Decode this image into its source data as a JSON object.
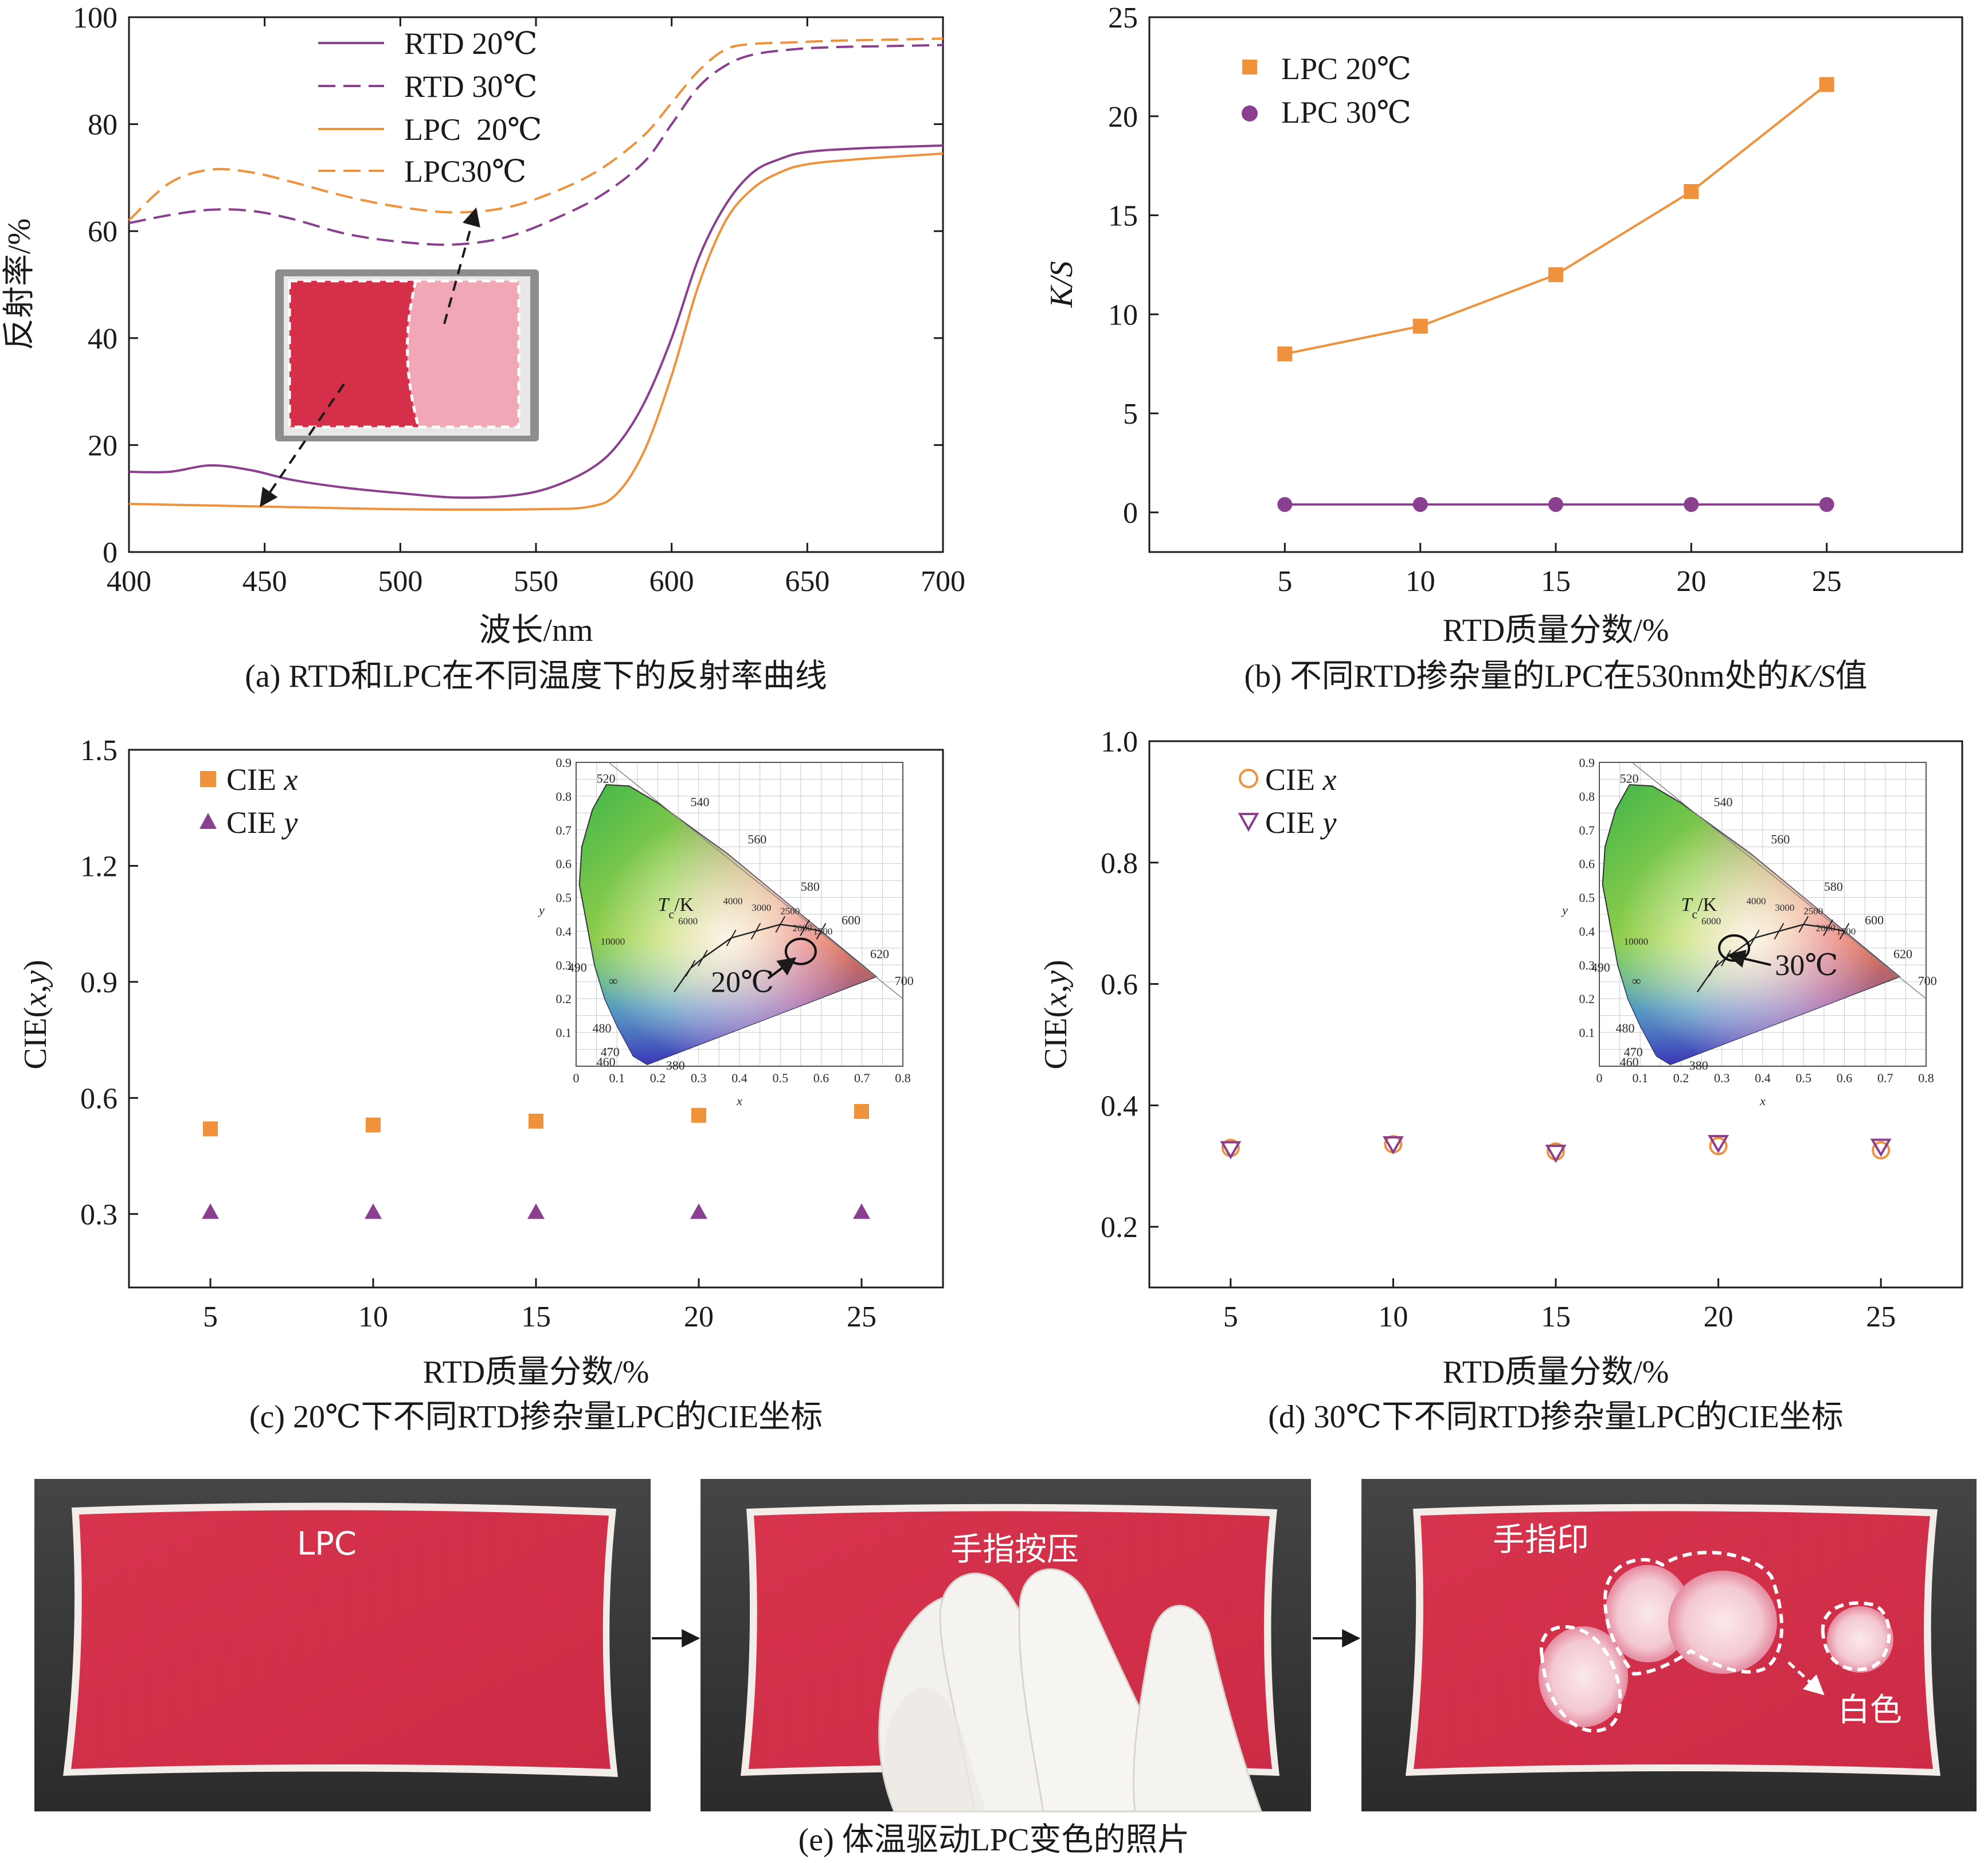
{
  "colors": {
    "rtd": "#8a3f8f",
    "lpc": "#f0913c",
    "fabric": "#d8324d",
    "white_spot": "#f6dde2",
    "glove": "#f3f1ee",
    "backdrop": "#3a3a3a"
  },
  "panel_a": {
    "caption": "(a) RTD和LPC在不同温度下的反射率曲线",
    "xlabel": "波长/nm",
    "ylabel": "反射率/%",
    "legend": [
      "RTD 20℃",
      "RTD 30℃",
      "LPC  20℃",
      "LPC30℃"
    ],
    "chart_data": {
      "type": "line",
      "xlim": [
        400,
        700
      ],
      "ylim": [
        0,
        100
      ],
      "xticks": [
        400,
        450,
        500,
        550,
        600,
        650,
        700
      ],
      "yticks": [
        0,
        20,
        40,
        60,
        80,
        100
      ],
      "series": [
        {
          "name": "RTD 20℃",
          "color": "#8a3f8f",
          "dash": false,
          "x": [
            400,
            415,
            430,
            445,
            460,
            480,
            500,
            520,
            540,
            555,
            570,
            580,
            590,
            600,
            610,
            620,
            630,
            640,
            650,
            670,
            700
          ],
          "y": [
            15,
            15,
            16.2,
            15.3,
            13.5,
            12,
            11,
            10.2,
            10.5,
            12,
            15.5,
            20,
            28,
            40,
            55,
            65,
            71,
            73.5,
            74.8,
            75.5,
            76
          ]
        },
        {
          "name": "RTD 30℃",
          "color": "#8a3f8f",
          "dash": true,
          "x": [
            400,
            415,
            430,
            445,
            460,
            480,
            500,
            520,
            540,
            560,
            575,
            590,
            600,
            610,
            620,
            630,
            645,
            660,
            680,
            700
          ],
          "y": [
            61.5,
            63,
            64,
            63.8,
            62.3,
            59.5,
            58,
            57.5,
            59,
            63,
            67,
            73,
            80,
            87,
            91,
            93,
            94,
            94.4,
            94.6,
            94.8
          ]
        },
        {
          "name": "LPC  20℃",
          "color": "#f0913c",
          "dash": false,
          "x": [
            400,
            450,
            500,
            550,
            570,
            580,
            590,
            600,
            610,
            620,
            630,
            640,
            650,
            670,
            700
          ],
          "y": [
            9,
            8.5,
            8,
            8,
            8.5,
            11,
            19,
            33,
            50,
            62,
            68,
            71,
            72.5,
            73.5,
            74.5
          ]
        },
        {
          "name": "LPC30℃",
          "color": "#f0913c",
          "dash": true,
          "x": [
            400,
            415,
            430,
            445,
            460,
            480,
            500,
            520,
            540,
            560,
            575,
            590,
            600,
            610,
            620,
            630,
            645,
            660,
            680,
            700
          ],
          "y": [
            62,
            69,
            71.5,
            71,
            69.2,
            66.5,
            64.5,
            63.5,
            64.5,
            68,
            72,
            78,
            84,
            90,
            94,
            95,
            95.3,
            95.6,
            95.8,
            96
          ]
        }
      ]
    }
  },
  "panel_b": {
    "caption_prefix": "(b) 不同RTD掺杂量的LPC在530nm处的",
    "caption_ks": "K/S",
    "caption_suffix": "值",
    "xlabel": "RTD质量分数/%",
    "ylabel": "K/S",
    "chart_data": {
      "type": "line",
      "xlim": [
        0,
        30
      ],
      "ylim": [
        -2,
        25
      ],
      "xticks": [
        5,
        10,
        15,
        20,
        25
      ],
      "yticks": [
        0,
        5,
        10,
        15,
        20,
        25
      ],
      "series": [
        {
          "name": "LPC 20℃",
          "color": "#f0913c",
          "marker": "square",
          "x": [
            5,
            10,
            15,
            20,
            25
          ],
          "y": [
            8.0,
            9.4,
            12.0,
            16.2,
            21.6
          ]
        },
        {
          "name": "LPC 30℃",
          "color": "#8a3f8f",
          "marker": "circle",
          "x": [
            5,
            10,
            15,
            20,
            25
          ],
          "y": [
            0.4,
            0.4,
            0.4,
            0.4,
            0.4
          ]
        }
      ]
    }
  },
  "panel_c": {
    "caption": "(c) 20℃下不同RTD掺杂量LPC的CIE坐标",
    "xlabel": "RTD质量分数/%",
    "ylabel_prefix": "CIE(",
    "ylabel_x": "x",
    "ylabel_comma": ",",
    "ylabel_y": "y",
    "ylabel_suffix": ")",
    "legend_prefix": "CIE ",
    "legend_vars": [
      "x",
      "y"
    ],
    "inset_temp": "20℃",
    "chart_data": {
      "type": "scatter",
      "xlim": [
        2.5,
        27.5
      ],
      "ylim": [
        0.11,
        1.5
      ],
      "xticks": [
        5,
        10,
        15,
        20,
        25
      ],
      "yticks": [
        0.3,
        0.6,
        0.9,
        1.2,
        1.5
      ],
      "series": [
        {
          "name": "CIE x",
          "color": "#f0913c",
          "marker": "square",
          "x": [
            5,
            10,
            15,
            20,
            25
          ],
          "y": [
            0.52,
            0.53,
            0.54,
            0.555,
            0.565
          ]
        },
        {
          "name": "CIE y",
          "color": "#8a3f8f",
          "marker": "triangle",
          "x": [
            5,
            10,
            15,
            20,
            25
          ],
          "y": [
            0.305,
            0.305,
            0.305,
            0.305,
            0.305
          ]
        }
      ]
    }
  },
  "panel_d": {
    "caption": "(d) 30℃下不同RTD掺杂量LPC的CIE坐标",
    "xlabel": "RTD质量分数/%",
    "ylabel_prefix": "CIE(",
    "ylabel_x": "x",
    "ylabel_comma": ",",
    "ylabel_y": "y",
    "ylabel_suffix": ")",
    "legend_prefix": "CIE ",
    "legend_vars": [
      "x",
      "y"
    ],
    "inset_temp": "30℃",
    "chart_data": {
      "type": "scatter",
      "xlim": [
        2.5,
        27.5
      ],
      "ylim": [
        0.1,
        1.0
      ],
      "xticks": [
        5,
        10,
        15,
        20,
        25
      ],
      "yticks": [
        0.2,
        0.4,
        0.6,
        0.8,
        1.0
      ],
      "series": [
        {
          "name": "CIE x",
          "color": "#f0913c",
          "marker": "circle-open",
          "x": [
            5,
            10,
            15,
            20,
            25
          ],
          "y": [
            0.33,
            0.336,
            0.324,
            0.333,
            0.326
          ]
        },
        {
          "name": "CIE y",
          "color": "#8a3f8f",
          "marker": "triangle-down-open",
          "x": [
            5,
            10,
            15,
            20,
            25
          ],
          "y": [
            0.328,
            0.336,
            0.322,
            0.338,
            0.332
          ]
        }
      ]
    }
  },
  "inset_cie": {
    "axis_x": "x",
    "axis_y": "y",
    "ticks_x": [
      "0",
      "0.1",
      "0.2",
      "0.3",
      "0.4",
      "0.5",
      "0.6",
      "0.7",
      "0.8"
    ],
    "ticks_y": [
      "0.1",
      "0.2",
      "0.3",
      "0.4",
      "0.5",
      "0.6",
      "0.7",
      "0.8",
      "0.9"
    ],
    "wavelengths": [
      "520",
      "540",
      "560",
      "580",
      "600",
      "620",
      "700",
      "490",
      "480",
      "470",
      "460",
      "380"
    ],
    "cct_label_t": "T",
    "cct_label_sub": "c",
    "cct_label_k": "/K",
    "cct_values": [
      "10000",
      "6000",
      "4000",
      "3000",
      "2500",
      "2000",
      "1500"
    ],
    "infinity": "∞"
  },
  "panel_e": {
    "caption": "(e) 体温驱动LPC变色的照片",
    "label_1": "LPC",
    "label_2": "手指按压",
    "label_3": "手指印",
    "label_white": "白色"
  }
}
